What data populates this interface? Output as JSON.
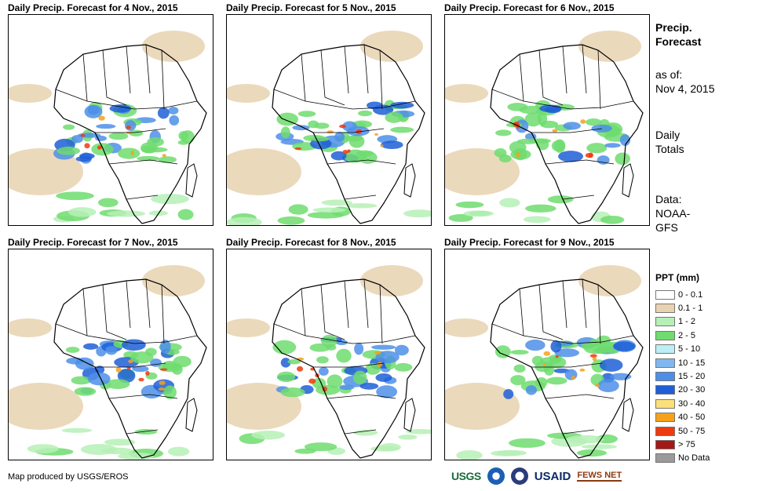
{
  "panels": [
    {
      "title": "Daily Precip. Forecast for 4 Nov., 2015"
    },
    {
      "title": "Daily Precip. Forecast for 5 Nov., 2015"
    },
    {
      "title": "Daily Precip. Forecast for 6 Nov., 2015"
    },
    {
      "title": "Daily Precip. Forecast for 7 Nov., 2015"
    },
    {
      "title": "Daily Precip. Forecast for 8 Nov., 2015"
    },
    {
      "title": "Daily Precip. Forecast for 9 Nov., 2015"
    }
  ],
  "side": {
    "heading_line1": "Precip.",
    "heading_line2": "Forecast",
    "asof_line1": "as of:",
    "asof_line2": "Nov 4, 2015",
    "totals_line1": "Daily",
    "totals_line2": "Totals",
    "data_line1": "Data:",
    "data_line2": "NOAA-",
    "data_line3": "GFS"
  },
  "legend": {
    "title": "PPT (mm)",
    "items": [
      {
        "label": "0 - 0.1",
        "color": "#ffffff"
      },
      {
        "label": "0.1 - 1",
        "color": "#e8d2b0"
      },
      {
        "label": "1 - 2",
        "color": "#b6f0b6"
      },
      {
        "label": "2 - 5",
        "color": "#6fdc6f"
      },
      {
        "label": "5 - 10",
        "color": "#bdeef5"
      },
      {
        "label": "10 - 15",
        "color": "#7fb8f0"
      },
      {
        "label": "15 - 20",
        "color": "#4d8fe8"
      },
      {
        "label": "20 - 30",
        "color": "#1f5fd6"
      },
      {
        "label": "30 - 40",
        "color": "#fbe07a"
      },
      {
        "label": "40 - 50",
        "color": "#f5a21a"
      },
      {
        "label": "50 - 75",
        "color": "#ee3a10"
      },
      {
        "label": "> 75",
        "color": "#a51818"
      },
      {
        "label": "No Data",
        "color": "#9a9a9a"
      }
    ]
  },
  "credit": "Map produced by USGS/EROS",
  "logos": {
    "usgs": "USGS",
    "usaid": "USAID",
    "fews": "FEWS NET"
  },
  "colors": {
    "dry": "#e8d2b0",
    "light_green": "#b6f0b6",
    "green": "#6fdc6f",
    "blue": "#4d8fe8",
    "dark_blue": "#1f5fd6",
    "orange": "#f5a21a",
    "red": "#ee3a10"
  }
}
